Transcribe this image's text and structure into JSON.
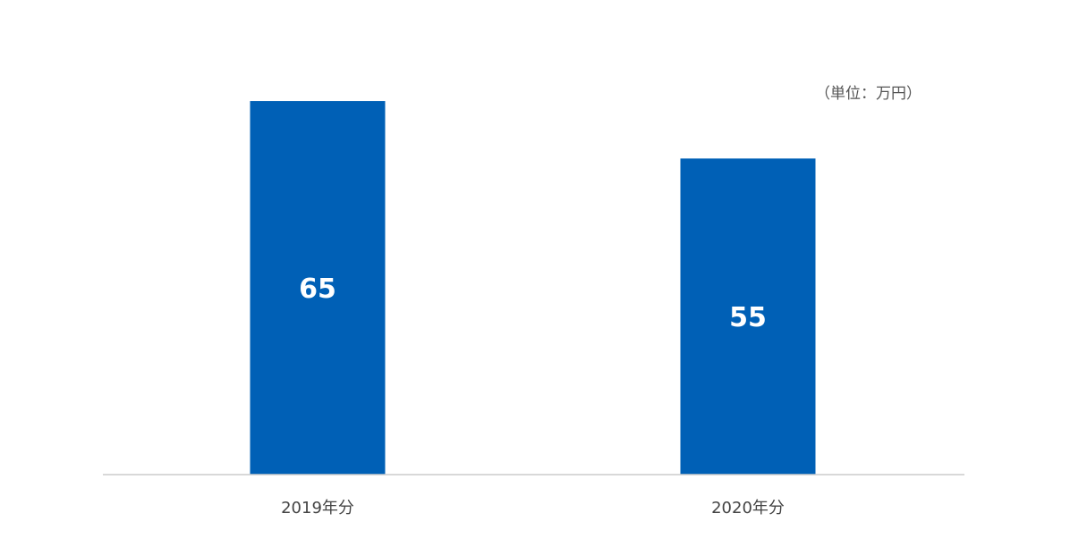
{
  "chart_data": {
    "type": "bar",
    "title": "",
    "unit_label": "（単位：万円）",
    "categories": [
      "2019年分",
      "2020年分"
    ],
    "values": [
      65,
      55
    ],
    "data_labels": [
      "65",
      "55"
    ],
    "xlabel": "",
    "ylabel": "",
    "grid": false,
    "legend": "none",
    "colors": {
      "bar": "#0060B6",
      "axis": "#cccccc",
      "data_label": "#ffffff",
      "tick_label": "#444444",
      "unit_label": "#555555"
    }
  }
}
